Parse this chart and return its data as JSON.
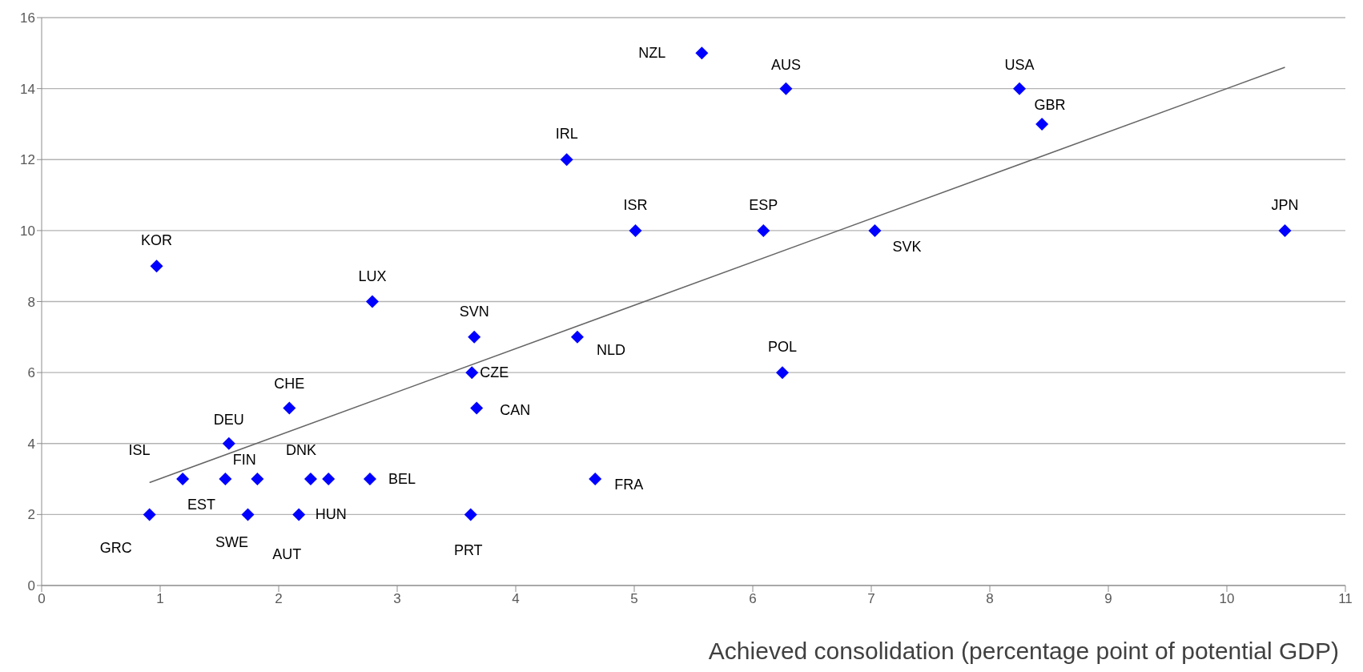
{
  "chart_data": {
    "type": "scatter",
    "xlabel": "Achieved consolidation (percentage point of potential GDP)",
    "xlim": [
      0,
      11
    ],
    "xticks": [
      0,
      1,
      2,
      3,
      4,
      5,
      6,
      7,
      8,
      9,
      10,
      11
    ],
    "ylim": [
      0,
      16
    ],
    "yticks": [
      0,
      2,
      4,
      6,
      8,
      10,
      12,
      14,
      16
    ],
    "grid": "y",
    "series": [
      {
        "marker": "diamond",
        "color": "#0000ff",
        "x": [
          5.57,
          6.28,
          8.25,
          8.44,
          4.43,
          5.01,
          6.09,
          7.03,
          10.49,
          0.97,
          2.79,
          3.65,
          4.52,
          6.25,
          3.63,
          2.09,
          3.67,
          1.58,
          1.19,
          1.55,
          1.82,
          2.27,
          2.42,
          2.77,
          4.67,
          0.91,
          1.74,
          2.17,
          3.62
        ],
        "values": [
          15,
          14,
          14,
          13,
          12,
          10,
          10,
          10,
          10,
          9,
          8,
          7,
          7,
          6,
          6,
          5,
          5,
          4,
          3,
          3,
          3,
          3,
          3,
          3,
          3,
          2,
          2,
          2,
          2
        ]
      },
      {
        "type": "line",
        "marker": "none",
        "color": "#666666",
        "x": [
          0.91,
          10.49
        ],
        "values": [
          2.9,
          14.6
        ]
      }
    ],
    "annotations": [
      {
        "text": "NZL",
        "x": 5.57,
        "y": 15
      },
      {
        "text": "AUS",
        "x": 6.28,
        "y": 14
      },
      {
        "text": "USA",
        "x": 8.25,
        "y": 14
      },
      {
        "text": "GBR",
        "x": 8.44,
        "y": 13
      },
      {
        "text": "IRL",
        "x": 4.43,
        "y": 12
      },
      {
        "text": "ISR",
        "x": 5.01,
        "y": 10
      },
      {
        "text": "ESP",
        "x": 6.09,
        "y": 10
      },
      {
        "text": "SVK",
        "x": 7.03,
        "y": 10
      },
      {
        "text": "JPN",
        "x": 10.49,
        "y": 10
      },
      {
        "text": "KOR",
        "x": 0.97,
        "y": 9
      },
      {
        "text": "LUX",
        "x": 2.79,
        "y": 8
      },
      {
        "text": "SVN",
        "x": 3.65,
        "y": 7
      },
      {
        "text": "NLD",
        "x": 4.52,
        "y": 7
      },
      {
        "text": "POL",
        "x": 6.25,
        "y": 6
      },
      {
        "text": "CZE",
        "x": 3.63,
        "y": 6
      },
      {
        "text": "CHE",
        "x": 2.09,
        "y": 5
      },
      {
        "text": "CAN",
        "x": 3.67,
        "y": 5
      },
      {
        "text": "DEU",
        "x": 1.58,
        "y": 4
      },
      {
        "text": "ISL",
        "x": 1.19,
        "y": 3
      },
      {
        "text": "EST",
        "x": 1.55,
        "y": 3
      },
      {
        "text": "FIN",
        "x": 1.82,
        "y": 3
      },
      {
        "text": "DNK",
        "x": 2.27,
        "y": 3
      },
      {
        "text": "BEL",
        "x": 2.77,
        "y": 3
      },
      {
        "text": "FRA",
        "x": 4.67,
        "y": 3
      },
      {
        "text": "GRC",
        "x": 0.91,
        "y": 2
      },
      {
        "text": "SWE",
        "x": 1.74,
        "y": 2
      },
      {
        "text": "AUT",
        "x": 2.17,
        "y": 2
      },
      {
        "text": "HUN",
        "x": 2.17,
        "y": 2
      },
      {
        "text": "PRT",
        "x": 3.62,
        "y": 2
      }
    ]
  }
}
